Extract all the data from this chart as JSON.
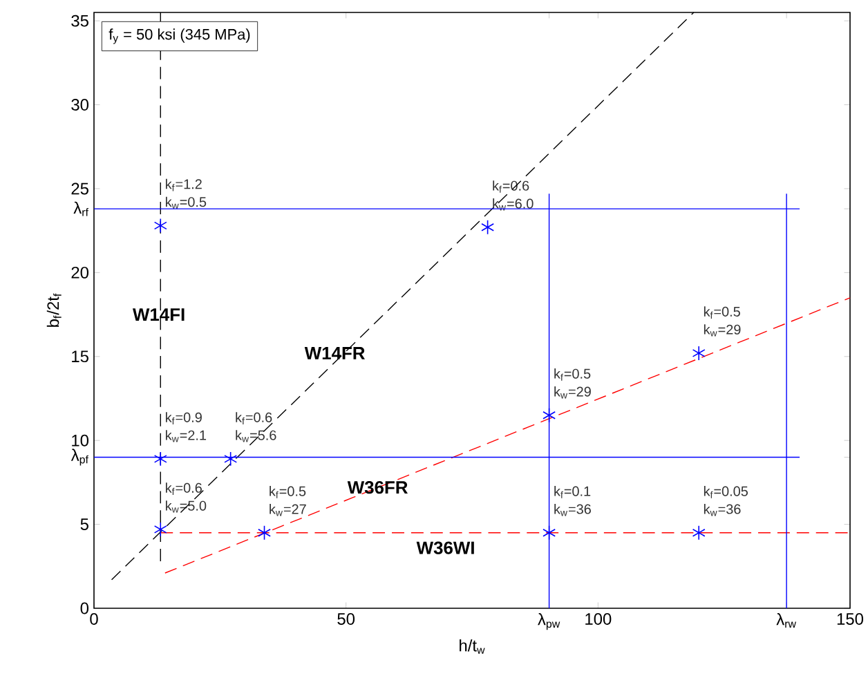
{
  "chart_data": {
    "type": "scatter",
    "xlabel": "h/t$_{w}$",
    "ylabel": "b$_{f}$/2t$_{f}$",
    "xlim": [
      0,
      150
    ],
    "ylim": [
      0,
      35.5
    ],
    "xticks": [
      0,
      50,
      {
        "value": 90.3,
        "label": "λ$_{pw}$"
      },
      100,
      {
        "value": 137.4,
        "label": "λ$_{rw}$"
      },
      150
    ],
    "yticks": [
      0,
      5,
      {
        "value": 9.0,
        "label": "λ$_{pf}$"
      },
      10,
      15,
      20,
      {
        "value": 23.8,
        "label": "λ$_{rf}$"
      },
      25,
      30,
      35
    ],
    "grid": false,
    "annotations": [
      "f$_{y}$ = 50 ksi (345 MPa)",
      "W14FI",
      "W14FR",
      "W36FR",
      "W36WI"
    ],
    "series": [
      {
        "type": "scatter",
        "color": "#0000ff",
        "marker": "cross",
        "x": [
          13.2,
          78.1,
          13.2,
          27.1,
          90.3,
          120.0,
          13.2,
          33.8,
          90.3,
          120.0
        ],
        "values": [
          22.8,
          22.7,
          8.9,
          8.9,
          11.5,
          15.2,
          4.7,
          4.5,
          4.5,
          4.5
        ],
        "value_labels": [
          "k$_{f}$=1.2 k$_{w}$=0.5",
          "k$_{f}$=0.6 k$_{w}$=6.0",
          "k$_{f}$=0.9 k$_{w}$=2.1",
          "k$_{f}$=0.6 k$_{w}$=5.6",
          "k$_{f}$=0.5 k$_{w}$=29",
          "k$_{f}$=0.5 k$_{w}$=29",
          "k$_{f}$=0.6 k$_{w}$=5.0",
          "k$_{f}$=0.5 k$_{w}$=27",
          "k$_{f}$=0.1 k$_{w}$=36",
          "k$_{f}$=0.05 k$_{w}$=36"
        ]
      },
      {
        "type": "line",
        "color": "#000000",
        "line_style": "dashed",
        "x": [
          13.2,
          13.2
        ],
        "values": [
          2.8,
          35.5
        ]
      },
      {
        "type": "line",
        "color": "#000000",
        "line_style": "dashed",
        "x": [
          3.5,
          119
        ],
        "values": [
          1.7,
          35.5
        ]
      },
      {
        "type": "line",
        "color": "#ff0000",
        "line_style": "dashed",
        "x": [
          14.1,
          150
        ],
        "values": [
          2.1,
          18.5
        ]
      },
      {
        "type": "line",
        "color": "#ff0000",
        "line_style": "dashed",
        "x": [
          13.2,
          150
        ],
        "values": [
          4.5,
          4.5
        ]
      },
      {
        "type": "line",
        "color": "#0000ff",
        "line_style": "solid",
        "x": [
          0,
          140
        ],
        "values": [
          23.8,
          23.8
        ]
      },
      {
        "type": "line",
        "color": "#0000ff",
        "line_style": "solid",
        "x": [
          0,
          140
        ],
        "values": [
          9.0,
          9.0
        ]
      },
      {
        "type": "line",
        "color": "#0000ff",
        "line_style": "solid",
        "x": [
          90.3,
          90.3
        ],
        "values": [
          0,
          24.7
        ]
      },
      {
        "type": "line",
        "color": "#0000ff",
        "line_style": "solid",
        "x": [
          137.4,
          137.4
        ],
        "values": [
          0,
          24.7
        ]
      }
    ]
  }
}
